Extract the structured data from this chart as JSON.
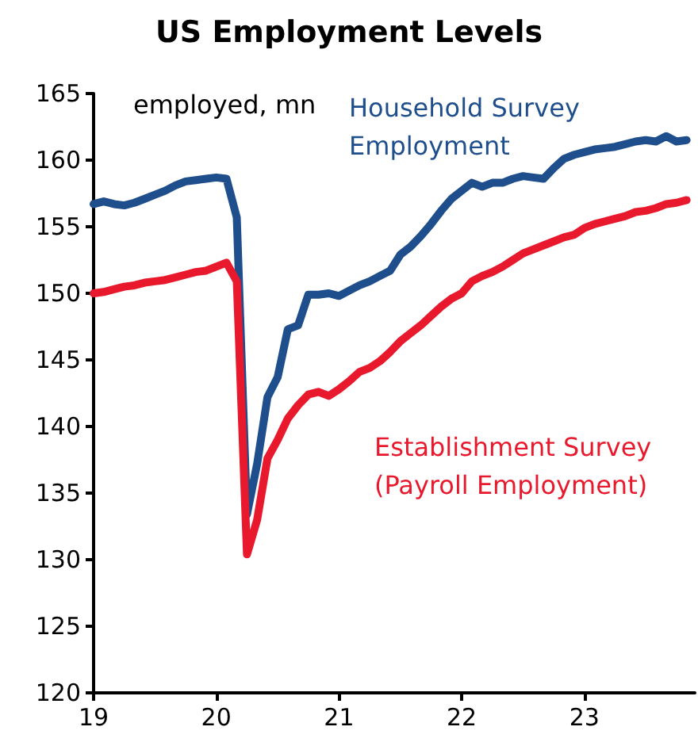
{
  "chart_data": {
    "type": "line",
    "title": "US Employment Levels",
    "ylabel": "employed, mn",
    "x": [
      19,
      19.083,
      19.167,
      19.25,
      19.333,
      19.417,
      19.5,
      19.583,
      19.667,
      19.75,
      19.833,
      19.917,
      20,
      20.083,
      20.167,
      20.25,
      20.333,
      20.417,
      20.5,
      20.583,
      20.667,
      20.75,
      20.833,
      20.917,
      21,
      21.083,
      21.167,
      21.25,
      21.333,
      21.417,
      21.5,
      21.583,
      21.667,
      21.75,
      21.833,
      21.917,
      22,
      22.083,
      22.167,
      22.25,
      22.333,
      22.417,
      22.5,
      22.583,
      22.667,
      22.75,
      22.833,
      22.917,
      23,
      23.083,
      23.167,
      23.25,
      23.333,
      23.417,
      23.5,
      23.583,
      23.667,
      23.75,
      23.833
    ],
    "series": [
      {
        "name": "Household Survey\nEmployment",
        "color": "#1f4e8c",
        "values": [
          156.7,
          156.9,
          156.7,
          156.6,
          156.8,
          157.1,
          157.4,
          157.7,
          158.1,
          158.4,
          158.5,
          158.6,
          158.7,
          158.6,
          155.7,
          133.4,
          137.2,
          142.2,
          143.7,
          147.3,
          147.6,
          149.9,
          149.9,
          150.0,
          149.8,
          150.2,
          150.6,
          150.9,
          151.3,
          151.7,
          152.9,
          153.5,
          154.3,
          155.2,
          156.2,
          157.1,
          157.7,
          158.3,
          158.0,
          158.3,
          158.3,
          158.6,
          158.8,
          158.7,
          158.6,
          159.4,
          160.1,
          160.4,
          160.6,
          160.8,
          160.9,
          161.0,
          161.2,
          161.4,
          161.5,
          161.4,
          161.8,
          161.4,
          161.5
        ]
      },
      {
        "name": "Establishment Survey\n(Payroll Employment)",
        "color": "#e8192c",
        "values": [
          150.0,
          150.1,
          150.3,
          150.5,
          150.6,
          150.8,
          150.9,
          151.0,
          151.2,
          151.4,
          151.6,
          151.7,
          152.0,
          152.3,
          150.9,
          130.4,
          133.0,
          137.6,
          139.0,
          140.6,
          141.6,
          142.4,
          142.6,
          142.3,
          142.8,
          143.4,
          144.1,
          144.4,
          144.9,
          145.6,
          146.4,
          147.0,
          147.6,
          148.3,
          149.0,
          149.6,
          150.0,
          150.9,
          151.3,
          151.6,
          152.0,
          152.5,
          153.0,
          153.3,
          153.6,
          153.9,
          154.2,
          154.4,
          154.9,
          155.2,
          155.4,
          155.6,
          155.8,
          156.1,
          156.2,
          156.4,
          156.7,
          156.8,
          157.0
        ]
      }
    ],
    "xlim": [
      19,
      23.9
    ],
    "xticks": [
      19,
      20,
      21,
      22,
      23
    ],
    "ylim": [
      120,
      165
    ],
    "yticks": [
      120,
      125,
      130,
      135,
      140,
      145,
      150,
      155,
      160,
      165
    ],
    "grid": false,
    "legend": false,
    "line_style": "solid",
    "marker": "none"
  }
}
